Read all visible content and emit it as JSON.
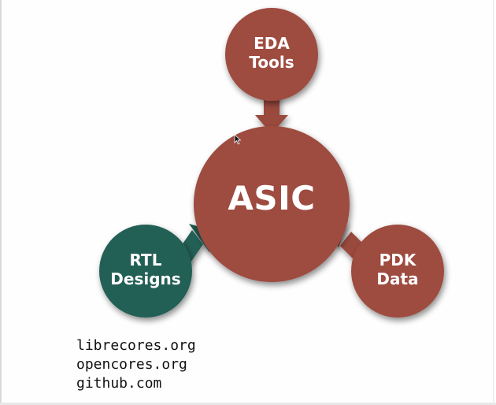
{
  "diagram": {
    "center": {
      "label": "ASIC"
    },
    "nodes": [
      {
        "id": "eda",
        "label": "EDA\nTools"
      },
      {
        "id": "rtl",
        "label": "RTL\nDesigns"
      },
      {
        "id": "pdk",
        "label": "PDK\nData"
      }
    ]
  },
  "sources": [
    "librecores.org",
    "opencores.org",
    "github.com",
    "…"
  ],
  "colors": {
    "brick": "#9e4c3f",
    "teal": "#245f55",
    "text_on_node": "#ffffff"
  }
}
